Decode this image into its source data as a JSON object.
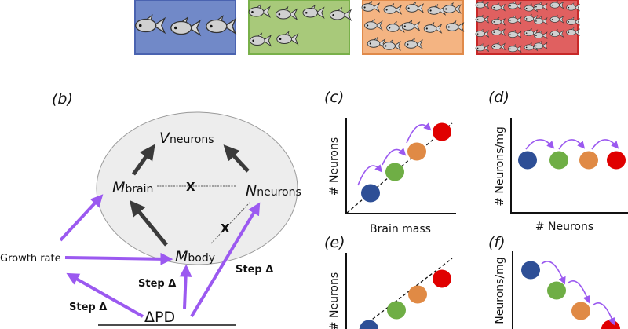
{
  "panel_a": {
    "tanks": [
      {
        "color": "#7189c8",
        "border": "#4a63b0",
        "fish": 3
      },
      {
        "color": "#a8c97a",
        "border": "#79b04a",
        "fish": 6
      },
      {
        "color": "#f4b482",
        "border": "#e08a4a",
        "fish": 13
      },
      {
        "color": "#e06060",
        "border": "#c82828",
        "fish": 26
      }
    ]
  },
  "panel_b": {
    "label": "(b)",
    "v_main": "V",
    "v_sub": "neurons",
    "mbrain_main": "M",
    "mbrain_sub": "brain",
    "nneurons_main": "N",
    "nneurons_sub": "neurons",
    "mbody_main": "M",
    "mbody_sub": "body",
    "growth_rate": "Growth rate",
    "delta_pd": "ΔPD",
    "step_labels": [
      "Step Δ",
      "Step Δ",
      "Step Δ"
    ],
    "cross_mark": "X",
    "arrow_color": "#9b59f0",
    "causal_color": "#3a3a3a"
  },
  "panel_c": {
    "label": "(c)",
    "ylabel": "# Neurons",
    "xlabel": "Brain mass"
  },
  "panel_d": {
    "label": "(d)",
    "ylabel": "# Neurons/mg",
    "xlabel": "# Neurons"
  },
  "panel_e": {
    "label": "(e)",
    "ylabel": "# Neurons"
  },
  "panel_f": {
    "label": "(f)",
    "ylabel": "Neurons/mg"
  },
  "dot_colors": [
    "#2e4f96",
    "#6fae45",
    "#e08a45",
    "#e00000"
  ]
}
